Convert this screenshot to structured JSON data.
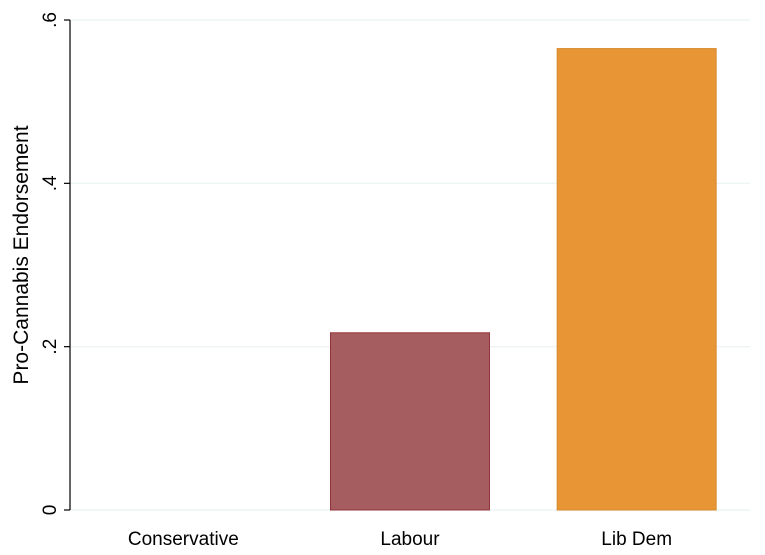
{
  "chart_data": {
    "type": "bar",
    "ylabel": "Pro-Cannabis Endorsement",
    "xlabel": "",
    "ylim": [
      0,
      0.6
    ],
    "grid": true,
    "yticks": [
      {
        "value": 0,
        "label": "0"
      },
      {
        "value": 0.2,
        "label": ".2"
      },
      {
        "value": 0.4,
        "label": ".4"
      },
      {
        "value": 0.6,
        "label": ".6"
      }
    ],
    "categories": [
      "Conservative",
      "Labour",
      "Lib Dem"
    ],
    "values": [
      0,
      0.217,
      0.565
    ],
    "colors": [
      "#1a476f",
      "#a65d5f",
      "#e89535"
    ],
    "grid_color": "#eaf2f3",
    "bar_edge_colors": [
      "#1a476f",
      "#90353b",
      "#d48a2c"
    ]
  }
}
